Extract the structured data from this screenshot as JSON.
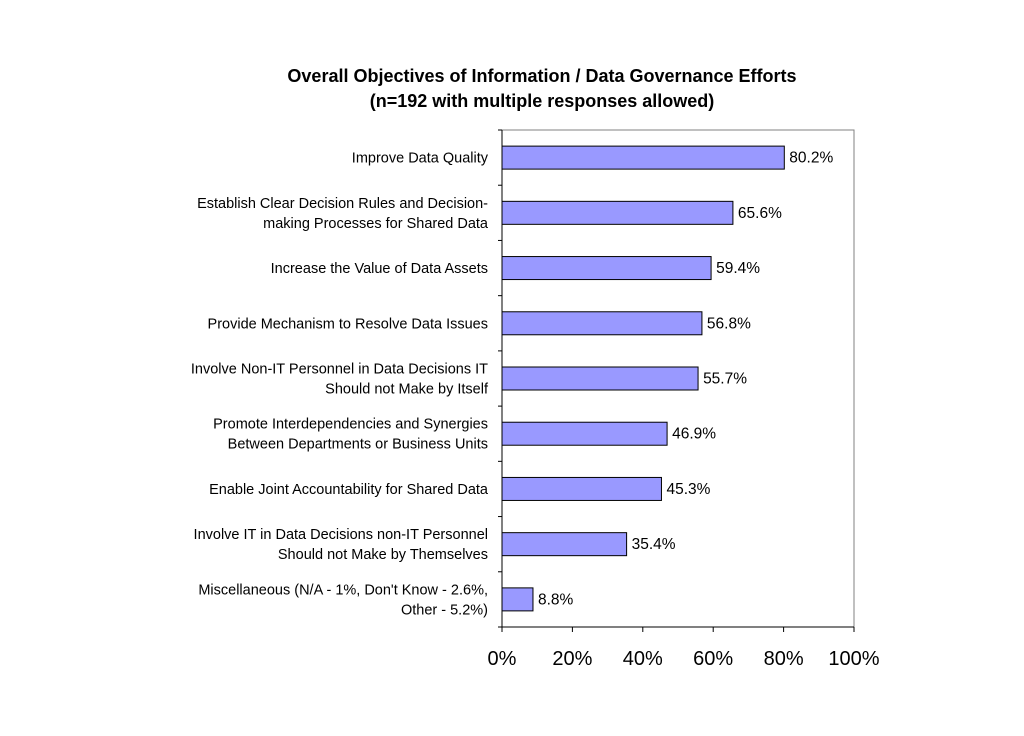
{
  "chart_data": {
    "type": "bar",
    "orientation": "horizontal",
    "title": [
      "Overall Objectives of Information / Data Governance Efforts",
      "(n=192 with multiple responses allowed)"
    ],
    "categories": [
      [
        "Improve Data Quality"
      ],
      [
        "Establish Clear Decision Rules and Decision-",
        "making Processes for Shared Data"
      ],
      [
        "Increase the Value of Data Assets"
      ],
      [
        "Provide Mechanism to Resolve Data Issues"
      ],
      [
        "Involve Non-IT Personnel in Data Decisions IT",
        "Should not Make by Itself"
      ],
      [
        "Promote Interdependencies and Synergies",
        "Between Departments or Business Units"
      ],
      [
        "Enable Joint Accountability for Shared Data"
      ],
      [
        "Involve IT in Data Decisions non-IT Personnel",
        "Should not Make by Themselves"
      ],
      [
        "Miscellaneous (N/A - 1%, Don't Know - 2.6%,",
        "Other - 5.2%)"
      ]
    ],
    "values": [
      80.2,
      65.6,
      59.4,
      56.8,
      55.7,
      46.9,
      45.3,
      35.4,
      8.8
    ],
    "value_labels": [
      "80.2%",
      "65.6%",
      "59.4%",
      "56.8%",
      "55.7%",
      "46.9%",
      "45.3%",
      "35.4%",
      "8.8%"
    ],
    "x_ticks": [
      "0%",
      "20%",
      "40%",
      "60%",
      "80%",
      "100%"
    ],
    "xlim": [
      0,
      100
    ],
    "grid": false,
    "legend": "none",
    "colors": {
      "bar_fill": "#9999ff",
      "bar_stroke": "#000000",
      "axis": "#808080"
    }
  }
}
